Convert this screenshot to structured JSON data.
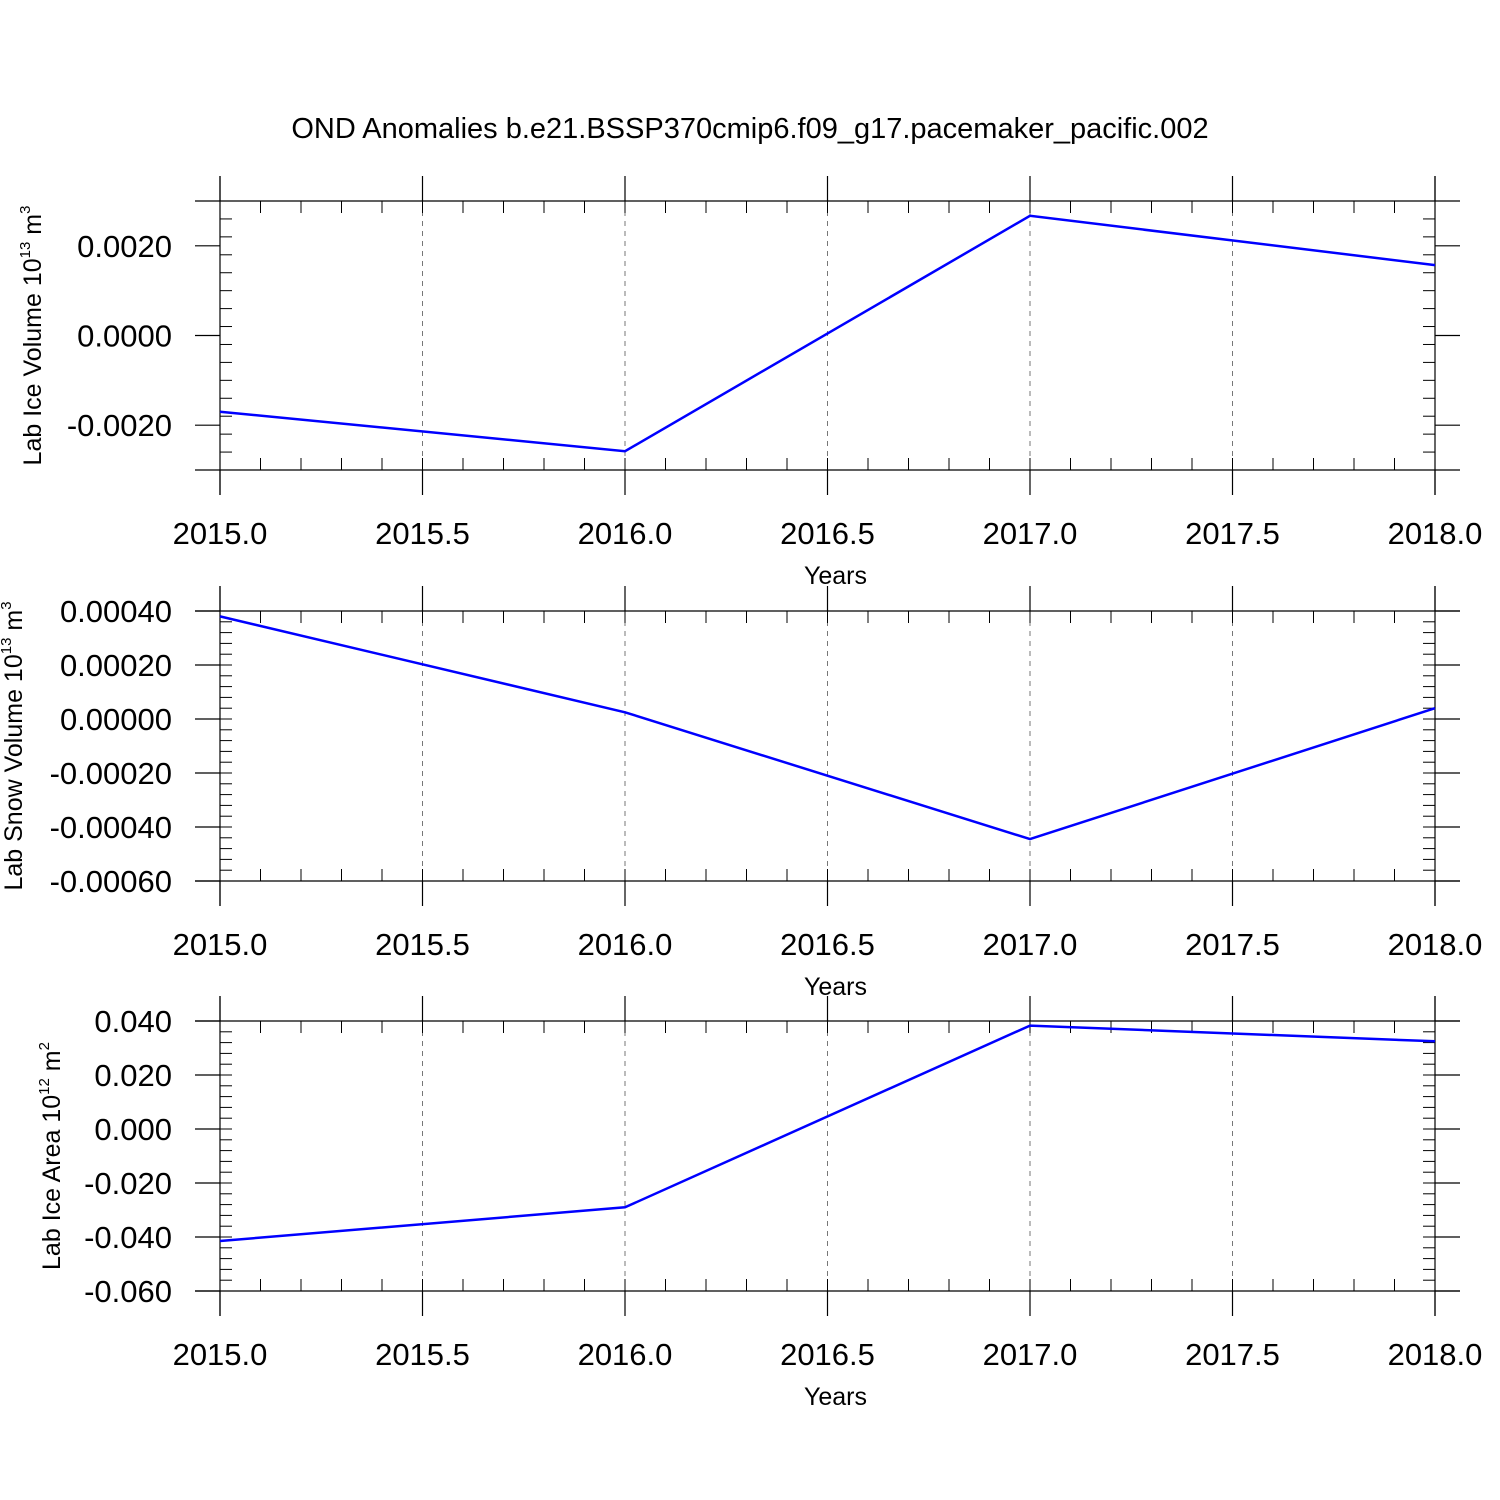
{
  "title": "OND Anomalies b.e21.BSSP370cmip6.f09_g17.pacemaker_pacific.002",
  "colors": {
    "line": "#0000ff",
    "axis": "#000000",
    "grid": "#777777"
  },
  "chart_data": [
    {
      "type": "line",
      "xlabel": "Years",
      "ylabel_main": "Lab Ice Volume 10",
      "ylabel_exp": "13",
      "ylabel_unit": " m",
      "ylabel_unit_exp": "3",
      "xlim": [
        2015.0,
        2018.0
      ],
      "ylim": [
        -0.003,
        0.003
      ],
      "xticks": [
        "2015.0",
        "2015.5",
        "2016.0",
        "2016.5",
        "2017.0",
        "2017.5",
        "2018.0"
      ],
      "yticks": [
        "0.0020",
        "0.0000",
        "-0.0020"
      ],
      "grid": "vertical-dashed",
      "series": [
        {
          "x": [
            2015,
            2016,
            2017,
            2018
          ],
          "values": [
            -0.0017,
            -0.00258,
            0.00267,
            0.00157
          ]
        }
      ]
    },
    {
      "type": "line",
      "xlabel": "Years",
      "ylabel_main": "Lab Snow Volume 10",
      "ylabel_exp": "13",
      "ylabel_unit": " m",
      "ylabel_unit_exp": "3",
      "xlim": [
        2015.0,
        2018.0
      ],
      "ylim": [
        -0.0006,
        0.0004
      ],
      "xticks": [
        "2015.0",
        "2015.5",
        "2016.0",
        "2016.5",
        "2017.0",
        "2017.5",
        "2018.0"
      ],
      "yticks": [
        "0.00040",
        "0.00020",
        "0.00000",
        "-0.00020",
        "-0.00040",
        "-0.00060"
      ],
      "grid": "vertical-dashed",
      "series": [
        {
          "x": [
            2015,
            2016,
            2017,
            2018
          ],
          "values": [
            0.00038,
            2.5e-05,
            -0.000445,
            4e-05
          ]
        }
      ]
    },
    {
      "type": "line",
      "xlabel": "Years",
      "ylabel_main": "Lab Ice Area 10",
      "ylabel_exp": "12",
      "ylabel_unit": " m",
      "ylabel_unit_exp": "2",
      "xlim": [
        2015.0,
        2018.0
      ],
      "ylim": [
        -0.06,
        0.04
      ],
      "xticks": [
        "2015.0",
        "2015.5",
        "2016.0",
        "2016.5",
        "2017.0",
        "2017.5",
        "2018.0"
      ],
      "yticks": [
        "0.040",
        "0.020",
        "0.000",
        "-0.020",
        "-0.040",
        "-0.060"
      ],
      "grid": "vertical-dashed",
      "series": [
        {
          "x": [
            2015,
            2016,
            2017,
            2018
          ],
          "values": [
            -0.0415,
            -0.029,
            0.0383,
            0.0325
          ]
        }
      ]
    }
  ]
}
